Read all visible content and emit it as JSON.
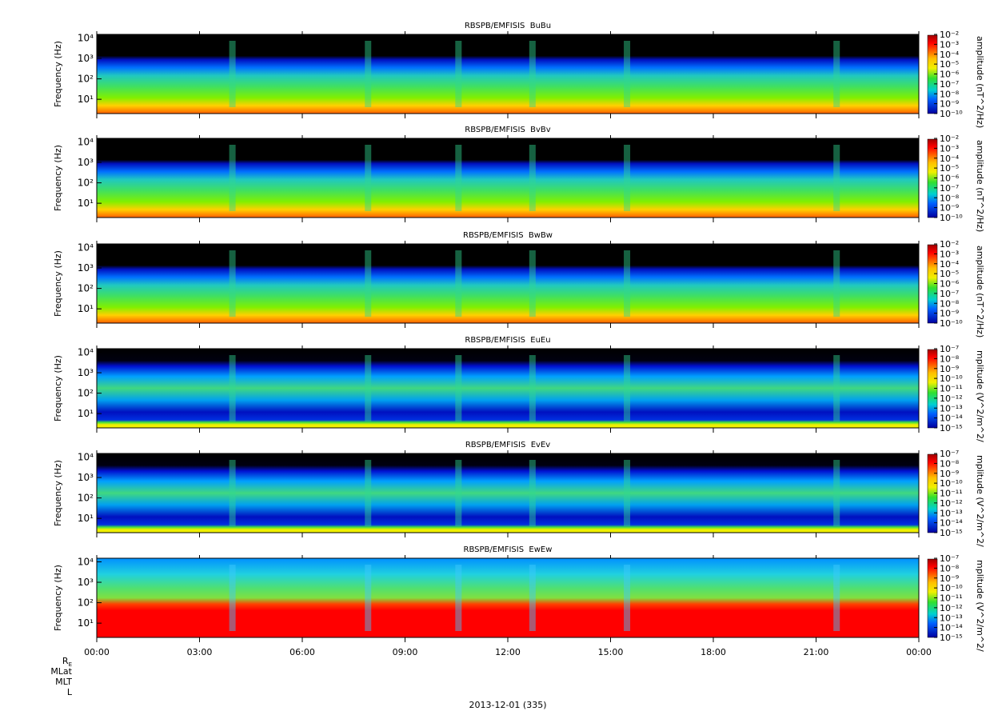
{
  "chart_data": [
    {
      "type": "spectrogram",
      "title": "RBSPB/EMFISIS  BuBu",
      "ylabel": "Frequency (Hz)",
      "log_y": true,
      "xlim": [
        0,
        24
      ],
      "ylim": [
        2,
        15000
      ],
      "yticks": [
        {
          "value": 10,
          "label": "10¹"
        },
        {
          "value": 100,
          "label": "10²"
        },
        {
          "value": 1000,
          "label": "10³"
        },
        {
          "value": 10000,
          "label": "10⁴"
        }
      ],
      "zlabel": "amplitude (nT^2/Hz)",
      "zlim": [
        1e-10,
        0.01
      ],
      "zticks": [
        {
          "value": 0.01,
          "label": "10⁻²"
        },
        {
          "value": 0.001,
          "label": "10⁻³"
        },
        {
          "value": 0.0001,
          "label": "10⁻⁴"
        },
        {
          "value": 1e-05,
          "label": "10⁻⁵"
        },
        {
          "value": 1e-06,
          "label": "10⁻⁶"
        },
        {
          "value": 1e-07,
          "label": "10⁻⁷"
        },
        {
          "value": 1e-08,
          "label": "10⁻⁸"
        },
        {
          "value": 1e-09,
          "label": "10⁻⁹"
        },
        {
          "value": 1e-10,
          "label": "10⁻¹⁰"
        }
      ]
    },
    {
      "type": "spectrogram",
      "title": "RBSPB/EMFISIS  BvBv",
      "ylabel": "Frequency (Hz)",
      "log_y": true,
      "xlim": [
        0,
        24
      ],
      "ylim": [
        2,
        15000
      ],
      "yticks": [
        {
          "value": 10,
          "label": "10¹"
        },
        {
          "value": 100,
          "label": "10²"
        },
        {
          "value": 1000,
          "label": "10³"
        },
        {
          "value": 10000,
          "label": "10⁴"
        }
      ],
      "zlabel": "amplitude (nT^2/Hz)",
      "zlim": [
        1e-10,
        0.01
      ],
      "zticks": [
        {
          "value": 0.01,
          "label": "10⁻²"
        },
        {
          "value": 0.001,
          "label": "10⁻³"
        },
        {
          "value": 0.0001,
          "label": "10⁻⁴"
        },
        {
          "value": 1e-05,
          "label": "10⁻⁵"
        },
        {
          "value": 1e-06,
          "label": "10⁻⁶"
        },
        {
          "value": 1e-07,
          "label": "10⁻⁷"
        },
        {
          "value": 1e-08,
          "label": "10⁻⁸"
        },
        {
          "value": 1e-09,
          "label": "10⁻⁹"
        },
        {
          "value": 1e-10,
          "label": "10⁻¹⁰"
        }
      ]
    },
    {
      "type": "spectrogram",
      "title": "RBSPB/EMFISIS  BwBw",
      "ylabel": "Frequency (Hz)",
      "log_y": true,
      "xlim": [
        0,
        24
      ],
      "ylim": [
        2,
        15000
      ],
      "yticks": [
        {
          "value": 10,
          "label": "10¹"
        },
        {
          "value": 100,
          "label": "10²"
        },
        {
          "value": 1000,
          "label": "10³"
        },
        {
          "value": 10000,
          "label": "10⁴"
        }
      ],
      "zlabel": "amplitude (nT^2/Hz)",
      "zlim": [
        1e-10,
        0.01
      ],
      "zticks": [
        {
          "value": 0.01,
          "label": "10⁻²"
        },
        {
          "value": 0.001,
          "label": "10⁻³"
        },
        {
          "value": 0.0001,
          "label": "10⁻⁴"
        },
        {
          "value": 1e-05,
          "label": "10⁻⁵"
        },
        {
          "value": 1e-06,
          "label": "10⁻⁶"
        },
        {
          "value": 1e-07,
          "label": "10⁻⁷"
        },
        {
          "value": 1e-08,
          "label": "10⁻⁸"
        },
        {
          "value": 1e-09,
          "label": "10⁻⁹"
        },
        {
          "value": 1e-10,
          "label": "10⁻¹⁰"
        }
      ]
    },
    {
      "type": "spectrogram",
      "title": "RBSPB/EMFISIS  EuEu",
      "ylabel": "Frequency (Hz)",
      "log_y": true,
      "xlim": [
        0,
        24
      ],
      "ylim": [
        2,
        15000
      ],
      "yticks": [
        {
          "value": 10,
          "label": "10¹"
        },
        {
          "value": 100,
          "label": "10²"
        },
        {
          "value": 1000,
          "label": "10³"
        },
        {
          "value": 10000,
          "label": "10⁴"
        }
      ],
      "zlabel": "mplitude (V^2/m^2/",
      "zlim": [
        1e-15,
        1e-07
      ],
      "zticks": [
        {
          "value": 1e-07,
          "label": "10⁻⁷"
        },
        {
          "value": 1e-08,
          "label": "10⁻⁸"
        },
        {
          "value": 1e-09,
          "label": "10⁻⁹"
        },
        {
          "value": 1e-10,
          "label": "10⁻¹⁰"
        },
        {
          "value": 1e-11,
          "label": "10⁻¹¹"
        },
        {
          "value": 1e-12,
          "label": "10⁻¹²"
        },
        {
          "value": 1e-13,
          "label": "10⁻¹³"
        },
        {
          "value": 1e-14,
          "label": "10⁻¹⁴"
        },
        {
          "value": 1e-15,
          "label": "10⁻¹⁵"
        }
      ]
    },
    {
      "type": "spectrogram",
      "title": "RBSPB/EMFISIS  EvEv",
      "ylabel": "Frequency (Hz)",
      "log_y": true,
      "xlim": [
        0,
        24
      ],
      "ylim": [
        2,
        15000
      ],
      "yticks": [
        {
          "value": 10,
          "label": "10¹"
        },
        {
          "value": 100,
          "label": "10²"
        },
        {
          "value": 1000,
          "label": "10³"
        },
        {
          "value": 10000,
          "label": "10⁴"
        }
      ],
      "zlabel": "mplitude (V^2/m^2/",
      "zlim": [
        1e-15,
        1e-07
      ],
      "zticks": [
        {
          "value": 1e-07,
          "label": "10⁻⁷"
        },
        {
          "value": 1e-08,
          "label": "10⁻⁸"
        },
        {
          "value": 1e-09,
          "label": "10⁻⁹"
        },
        {
          "value": 1e-10,
          "label": "10⁻¹⁰"
        },
        {
          "value": 1e-11,
          "label": "10⁻¹¹"
        },
        {
          "value": 1e-12,
          "label": "10⁻¹²"
        },
        {
          "value": 1e-13,
          "label": "10⁻¹³"
        },
        {
          "value": 1e-14,
          "label": "10⁻¹⁴"
        },
        {
          "value": 1e-15,
          "label": "10⁻¹⁵"
        }
      ]
    },
    {
      "type": "spectrogram",
      "title": "RBSPB/EMFISIS  EwEw",
      "ylabel": "Frequency (Hz)",
      "log_y": true,
      "xlim": [
        0,
        24
      ],
      "ylim": [
        2,
        15000
      ],
      "yticks": [
        {
          "value": 10,
          "label": "10¹"
        },
        {
          "value": 100,
          "label": "10²"
        },
        {
          "value": 1000,
          "label": "10³"
        },
        {
          "value": 10000,
          "label": "10⁴"
        }
      ],
      "zlabel": "mplitude (V^2/m^2/",
      "zlim": [
        1e-15,
        1e-07
      ],
      "zticks": [
        {
          "value": 1e-07,
          "label": "10⁻⁷"
        },
        {
          "value": 1e-08,
          "label": "10⁻⁸"
        },
        {
          "value": 1e-09,
          "label": "10⁻⁹"
        },
        {
          "value": 1e-10,
          "label": "10⁻¹⁰"
        },
        {
          "value": 1e-11,
          "label": "10⁻¹¹"
        },
        {
          "value": 1e-12,
          "label": "10⁻¹²"
        },
        {
          "value": 1e-13,
          "label": "10⁻¹³"
        },
        {
          "value": 1e-14,
          "label": "10⁻¹⁴"
        },
        {
          "value": 1e-15,
          "label": "10⁻¹⁵"
        }
      ],
      "xticks": [
        {
          "value": 0,
          "label": "00:00"
        },
        {
          "value": 3,
          "label": "03:00"
        },
        {
          "value": 6,
          "label": "06:00"
        },
        {
          "value": 9,
          "label": "09:00"
        },
        {
          "value": 12,
          "label": "12:00"
        },
        {
          "value": 15,
          "label": "15:00"
        },
        {
          "value": 18,
          "label": "18:00"
        },
        {
          "value": 21,
          "label": "21:00"
        },
        {
          "value": 24,
          "label": "00:00"
        }
      ]
    }
  ],
  "ephemeris_labels": [
    {
      "text": "R",
      "sub": "E"
    },
    {
      "text": "MLat"
    },
    {
      "text": "MLT"
    },
    {
      "text": "L"
    }
  ],
  "date_label": "2013-12-01 (335)"
}
